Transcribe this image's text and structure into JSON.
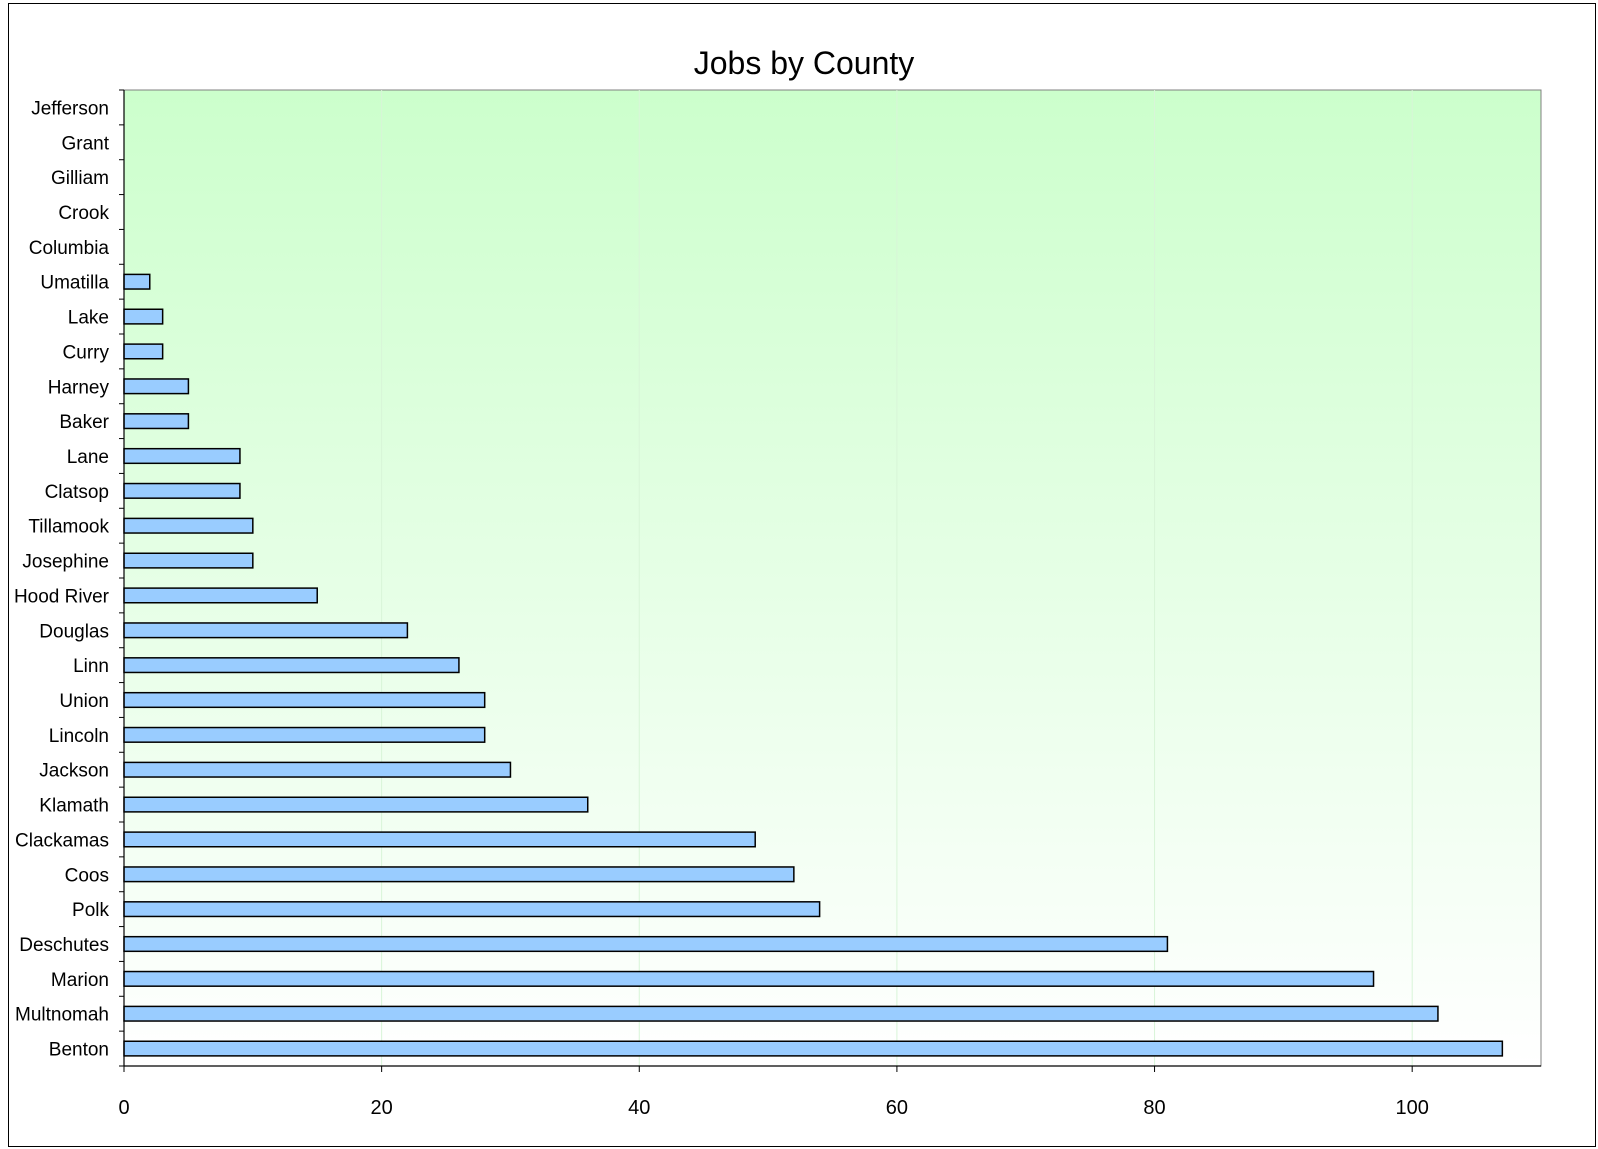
{
  "chart_data": {
    "type": "bar",
    "orientation": "horizontal",
    "title": "Jobs by County",
    "xlabel": "",
    "ylabel": "",
    "categories": [
      "Jefferson",
      "Grant",
      "Gilliam",
      "Crook",
      "Columbia",
      "Umatilla",
      "Lake",
      "Curry",
      "Harney",
      "Baker",
      "Lane",
      "Clatsop",
      "Tillamook",
      "Josephine",
      "Hood River",
      "Douglas",
      "Linn",
      "Union",
      "Lincoln",
      "Jackson",
      "Klamath",
      "Clackamas",
      "Coos",
      "Polk",
      "Deschutes",
      "Marion",
      "Multnomah",
      "Benton"
    ],
    "values": [
      0,
      0,
      0,
      0,
      0,
      2,
      3,
      3,
      5,
      5,
      9,
      9,
      10,
      10,
      15,
      22,
      26,
      28,
      28,
      30,
      36,
      49,
      52,
      54,
      81,
      97,
      102,
      107
    ],
    "xlim": [
      0,
      110
    ],
    "xticks": [
      0,
      20,
      40,
      60,
      80,
      100
    ],
    "grid": "vertical",
    "legend": "none",
    "colors": {
      "bar_fill": "#99ccff",
      "bar_stroke": "#000000",
      "plot_bg_top": "#ccffcc",
      "plot_bg_bottom": "#ffffff",
      "gridline": "#d8f5d8",
      "axis": "#808080"
    }
  }
}
